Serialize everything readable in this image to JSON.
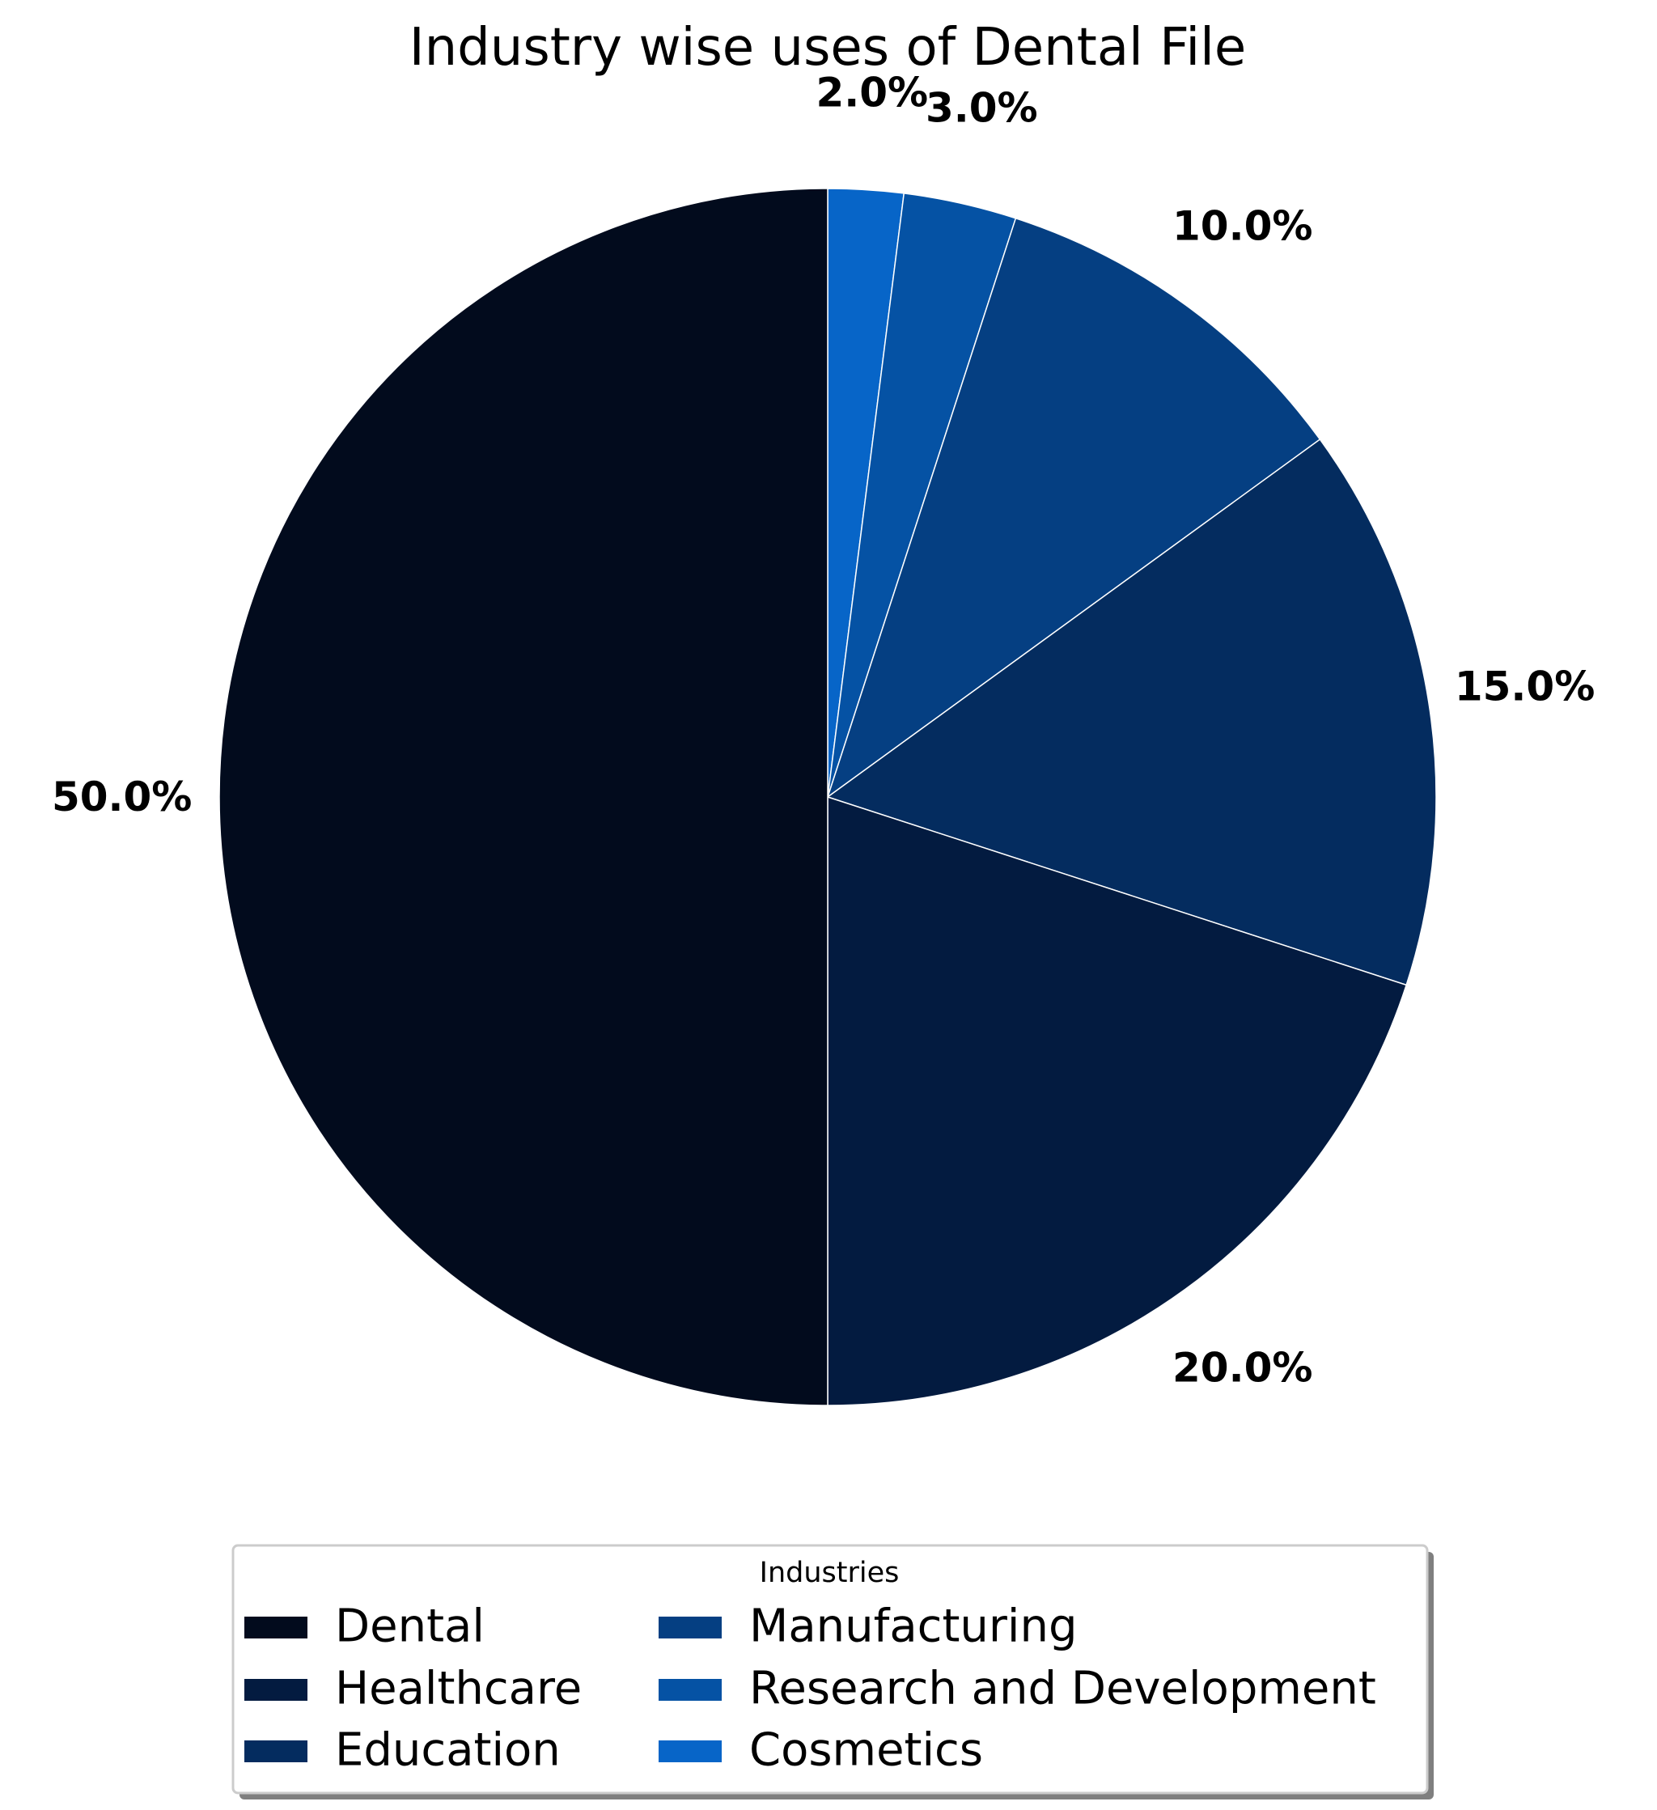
{
  "chart_data": {
    "type": "pie",
    "title": "Industry wise uses of Dental File",
    "start_angle_deg": 90,
    "direction": "clockwise",
    "slices": [
      {
        "label": "Cosmetics",
        "value": 2.0,
        "pct_label": "2.0%",
        "color": "#0765c8"
      },
      {
        "label": "Research and Development",
        "value": 3.0,
        "pct_label": "3.0%",
        "color": "#0552a4"
      },
      {
        "label": "Manufacturing",
        "value": 10.0,
        "pct_label": "10.0%",
        "color": "#053f82"
      },
      {
        "label": "Education",
        "value": 15.0,
        "pct_label": "15.0%",
        "color": "#042c5f"
      },
      {
        "label": "Healthcare",
        "value": 20.0,
        "pct_label": "20.0%",
        "color": "#031b40"
      },
      {
        "label": "Dental",
        "value": 50.0,
        "pct_label": "50.0%",
        "color": "#020b1d"
      }
    ],
    "legend": {
      "title": "Industries",
      "placement": "bottom-center",
      "columns": [
        [
          "Dental",
          "Healthcare",
          "Education"
        ],
        [
          "Manufacturing",
          "Research and Development",
          "Cosmetics"
        ]
      ]
    }
  }
}
